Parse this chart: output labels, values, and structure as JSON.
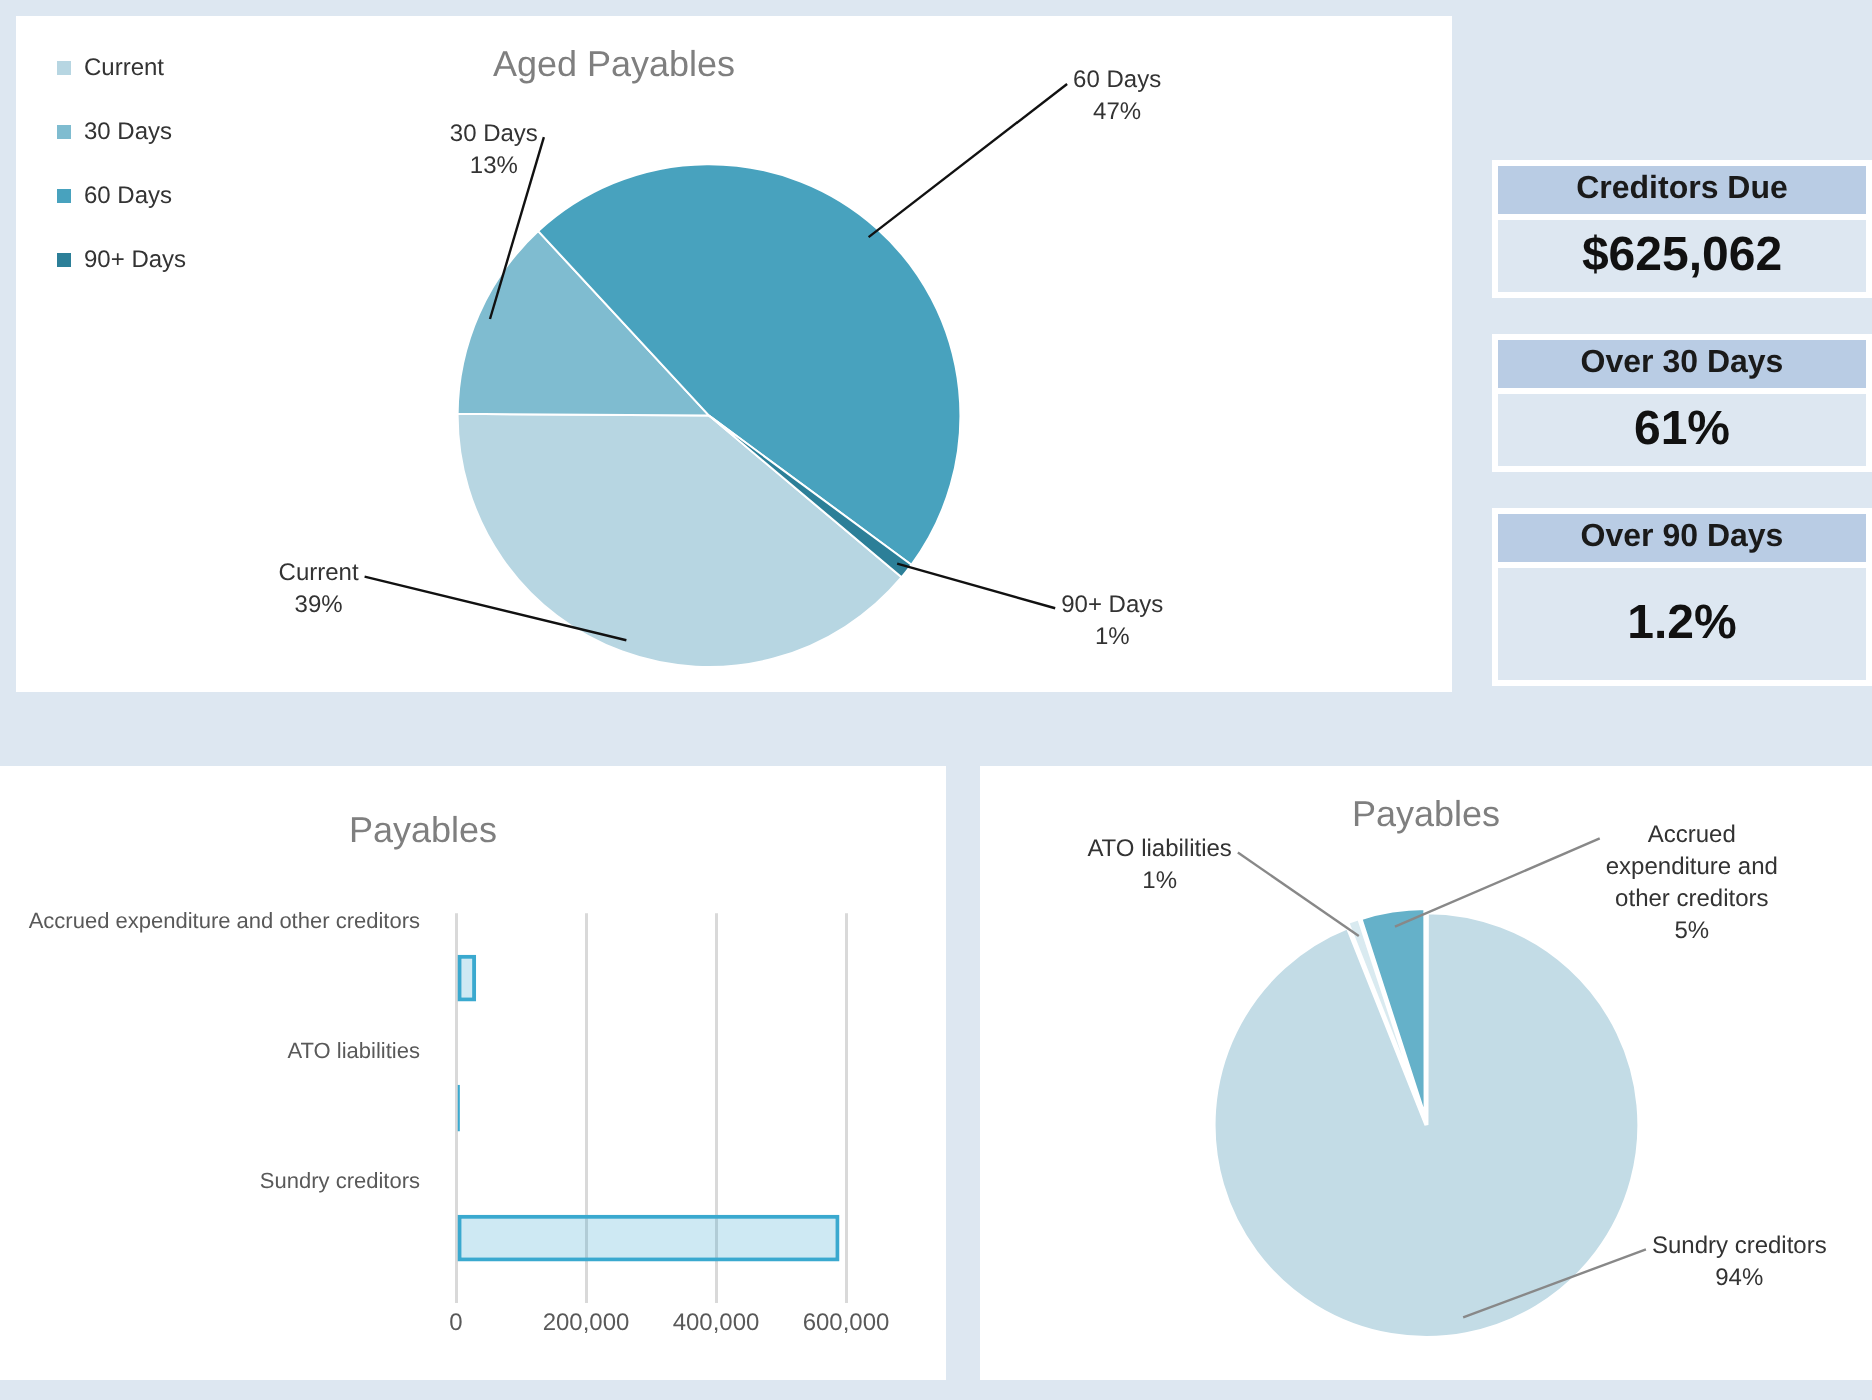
{
  "chart_data": [
    {
      "type": "pie",
      "title": "Aged Payables",
      "categories": [
        "Current",
        "30 Days",
        "60 Days",
        "90+ Days"
      ],
      "values": [
        39,
        13,
        47,
        1
      ],
      "colors": [
        "#b7d6e2",
        "#7fbcd0",
        "#48a2be",
        "#2c7f98"
      ],
      "value_labels": [
        "39%",
        "13%",
        "47%",
        "1%"
      ],
      "legend": "left"
    },
    {
      "type": "other",
      "annotations": [
        "Creditors Due",
        "$625,062",
        "Over 30 Days",
        "61%",
        "Over 90 Days",
        "1.2%"
      ]
    },
    {
      "type": "bar",
      "orientation": "horizontal",
      "title": "Payables",
      "categories": [
        "Accrued expenditure and other creditors",
        "ATO liabilities",
        "Sundry creditors"
      ],
      "values": [
        31000,
        6000,
        590000
      ],
      "color": "#3aa9cf",
      "xlim": [
        0,
        600000
      ],
      "xticks": [
        0,
        {
          "value": 200000,
          "label": "200,000"
        },
        {
          "value": 400000,
          "label": "400,000"
        },
        {
          "value": 600000,
          "label": "600,000"
        }
      ],
      "grid": "x"
    },
    {
      "type": "pie",
      "title": "Payables",
      "categories": [
        "Sundry creditors",
        "ATO liabilities",
        "Accrued expenditure and other creditors"
      ],
      "values": [
        94,
        1,
        5
      ],
      "colors": [
        "#c3dce6",
        "#d9eaf0",
        "#65b1c9"
      ],
      "value_labels": [
        "94%",
        "1%",
        "5%"
      ]
    }
  ]
}
